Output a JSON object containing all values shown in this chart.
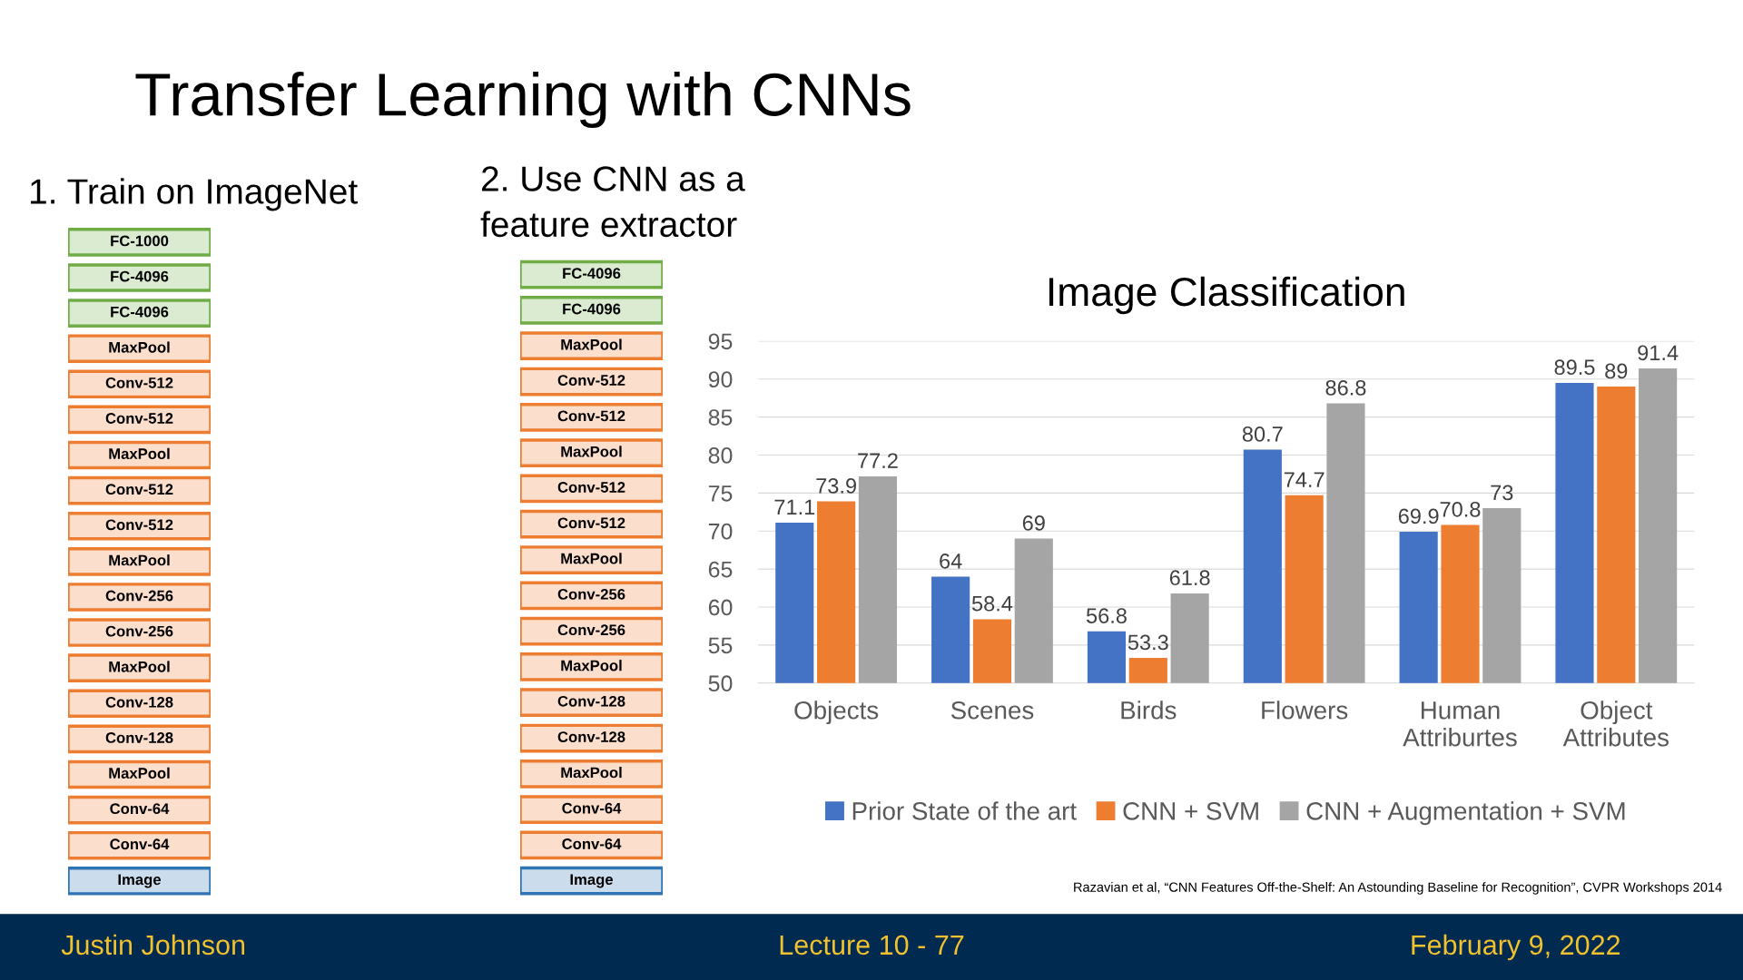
{
  "chart_data": [
    {
      "type": "other",
      "title": "Transfer Learning with CNNs",
      "annotations": [
        "Justin Johnson",
        "Lecture 10 - 77",
        "February 9, 2022"
      ],
      "color": "#002a50"
    },
    {
      "type": "other",
      "title": "1. Train on ImageNet",
      "annotations": [
        "FC-1000",
        "FC-4096",
        "FC-4096",
        "MaxPool",
        "Conv-512",
        "Conv-512",
        "MaxPool",
        "Conv-512",
        "Conv-512",
        "MaxPool",
        "Conv-256",
        "Conv-256",
        "MaxPool",
        "Conv-128",
        "Conv-128",
        "MaxPool",
        "Conv-64",
        "Conv-64",
        "Image"
      ],
      "colors": [
        "#70ad47",
        "#70ad47",
        "#70ad47",
        "#ed7d31",
        "#ed7d31",
        "#ed7d31",
        "#ed7d31",
        "#ed7d31",
        "#ed7d31",
        "#ed7d31",
        "#ed7d31",
        "#ed7d31",
        "#ed7d31",
        "#ed7d31",
        "#ed7d31",
        "#ed7d31",
        "#ed7d31",
        "#ed7d31",
        "#2e75b6"
      ]
    },
    {
      "type": "other",
      "title": "2. Use CNN as a\nfeature extractor",
      "annotations": [
        "FC-4096",
        "FC-4096",
        "MaxPool",
        "Conv-512",
        "Conv-512",
        "MaxPool",
        "Conv-512",
        "Conv-512",
        "MaxPool",
        "Conv-256",
        "Conv-256",
        "MaxPool",
        "Conv-128",
        "Conv-128",
        "MaxPool",
        "Conv-64",
        "Conv-64",
        "Image"
      ],
      "colors": [
        "#70ad47",
        "#70ad47",
        "#ed7d31",
        "#ed7d31",
        "#ed7d31",
        "#ed7d31",
        "#ed7d31",
        "#ed7d31",
        "#ed7d31",
        "#ed7d31",
        "#ed7d31",
        "#ed7d31",
        "#ed7d31",
        "#ed7d31",
        "#ed7d31",
        "#ed7d31",
        "#ed7d31",
        "#2e75b6"
      ]
    },
    {
      "type": "bar",
      "title": "Image Classification",
      "categories": [
        "Objects",
        "Scenes",
        "Birds",
        "Flowers",
        "Human\nAttriburtes",
        "Object\nAttributes"
      ],
      "series": [
        {
          "name": "Prior State of the art",
          "color": "#4472c4",
          "values": [
            71.1,
            64,
            56.8,
            80.7,
            69.9,
            89.5
          ]
        },
        {
          "name": "CNN + SVM",
          "color": "#ed7d31",
          "values": [
            73.9,
            58.4,
            53.3,
            74.7,
            70.8,
            89
          ]
        },
        {
          "name": "CNN + Augmentation + SVM",
          "color": "#a5a5a5",
          "values": [
            77.2,
            69,
            61.8,
            86.8,
            73,
            91.4
          ]
        }
      ],
      "ylim": [
        50,
        95
      ],
      "yticks": [
        50,
        55,
        60,
        65,
        70,
        75,
        80,
        85,
        90,
        95
      ],
      "grid": "y",
      "legend": "bottom",
      "data_labels": true,
      "annotations": [
        "Razavian et al, “CNN Features Off-the-Shelf: An Astounding Baseline for Recognition”, CVPR Workshops 2014"
      ]
    }
  ]
}
